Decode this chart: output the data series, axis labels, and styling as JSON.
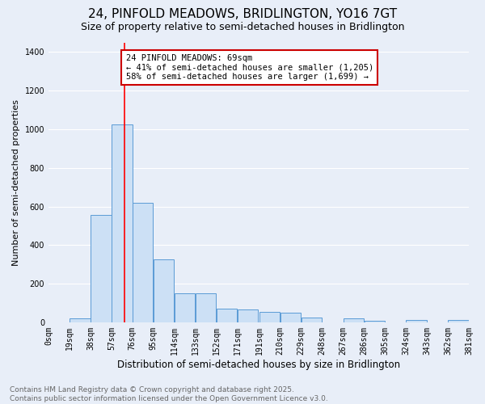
{
  "title": "24, PINFOLD MEADOWS, BRIDLINGTON, YO16 7GT",
  "subtitle": "Size of property relative to semi-detached houses in Bridlington",
  "xlabel": "Distribution of semi-detached houses by size in Bridlington",
  "ylabel": "Number of semi-detached properties",
  "bar_values": [
    0,
    20,
    555,
    1025,
    620,
    325,
    148,
    148,
    70,
    65,
    52,
    50,
    25,
    0,
    20,
    8,
    0,
    12,
    0,
    10
  ],
  "bin_edges": [
    0,
    19,
    38,
    57,
    76,
    95,
    114,
    133,
    152,
    171,
    191,
    210,
    229,
    248,
    267,
    286,
    305,
    324,
    343,
    362,
    381
  ],
  "tick_labels": [
    "0sqm",
    "19sqm",
    "38sqm",
    "57sqm",
    "76sqm",
    "95sqm",
    "114sqm",
    "133sqm",
    "152sqm",
    "171sqm",
    "191sqm",
    "210sqm",
    "229sqm",
    "248sqm",
    "267sqm",
    "286sqm",
    "305sqm",
    "324sqm",
    "343sqm",
    "362sqm",
    "381sqm"
  ],
  "bar_color": "#cce0f5",
  "bar_edge_color": "#5b9bd5",
  "red_line_x": 69,
  "annotation_text": "24 PINFOLD MEADOWS: 69sqm\n← 41% of semi-detached houses are smaller (1,205)\n58% of semi-detached houses are larger (1,699) →",
  "annotation_box_color": "#ffffff",
  "annotation_box_edge": "#cc0000",
  "ylim": [
    0,
    1450
  ],
  "yticks": [
    0,
    200,
    400,
    600,
    800,
    1000,
    1200,
    1400
  ],
  "background_color": "#e8eef8",
  "grid_color": "#ffffff",
  "footer_text": "Contains HM Land Registry data © Crown copyright and database right 2025.\nContains public sector information licensed under the Open Government Licence v3.0.",
  "title_fontsize": 11,
  "subtitle_fontsize": 9,
  "axis_label_fontsize": 8,
  "tick_fontsize": 7,
  "annotation_fontsize": 7.5,
  "footer_fontsize": 6.5
}
